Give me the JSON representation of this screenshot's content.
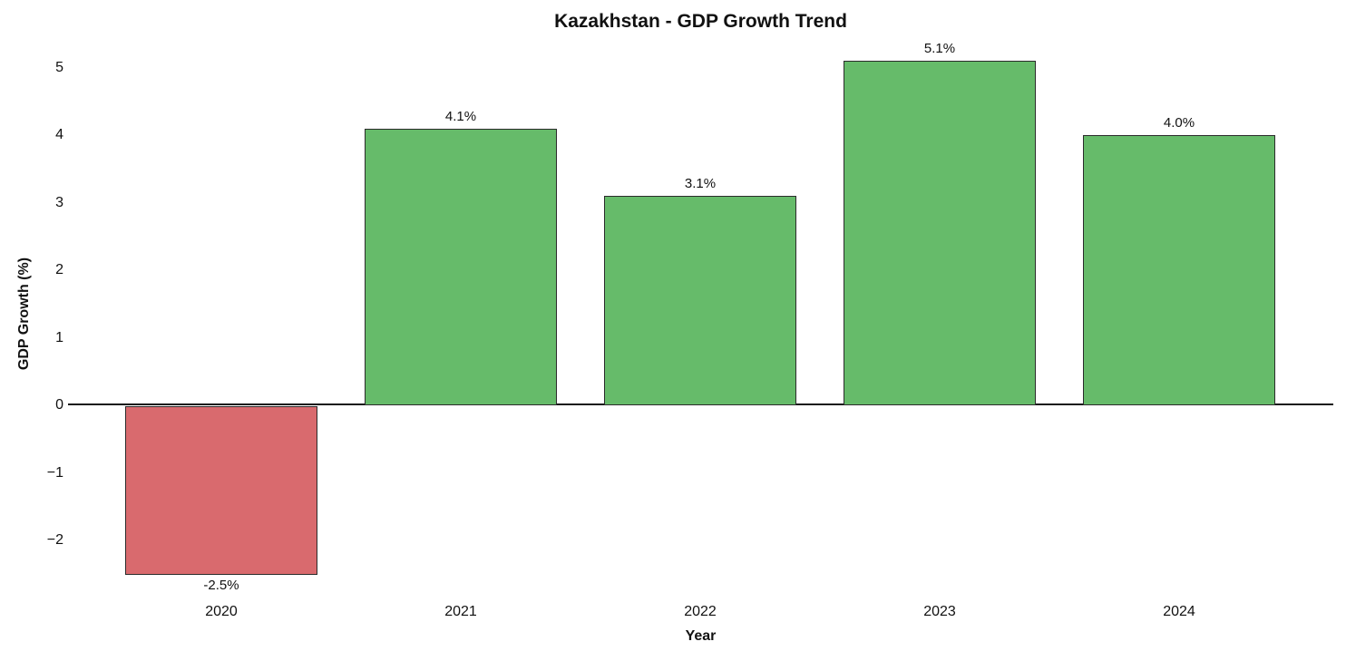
{
  "chart_data": {
    "type": "bar",
    "title": "Kazakhstan - GDP Growth Trend",
    "xlabel": "Year",
    "ylabel": "GDP Growth (%)",
    "categories": [
      "2020",
      "2021",
      "2022",
      "2023",
      "2024"
    ],
    "values": [
      -2.5,
      4.1,
      3.1,
      5.1,
      4.0
    ],
    "bar_labels": [
      "-2.5%",
      "4.1%",
      "3.1%",
      "5.1%",
      "4.0%"
    ],
    "bar_colors": [
      "#d96a6e",
      "#66bb6a",
      "#66bb6a",
      "#66bb6a",
      "#66bb6a"
    ],
    "positive_color": "#66bb6a",
    "negative_color": "#d96a6e",
    "bar_edge_color": "#2b2b2b",
    "baseline_color": "#1a1a1a",
    "yticks": [
      5,
      4,
      3,
      2,
      1,
      0,
      -1,
      -2
    ],
    "ytick_labels": [
      "5",
      "4",
      "3",
      "2",
      "1",
      "0",
      "−1",
      "−2"
    ],
    "ylim": [
      -2.7,
      5.4
    ],
    "baseline_value": 0,
    "grid": false,
    "legend": false
  }
}
